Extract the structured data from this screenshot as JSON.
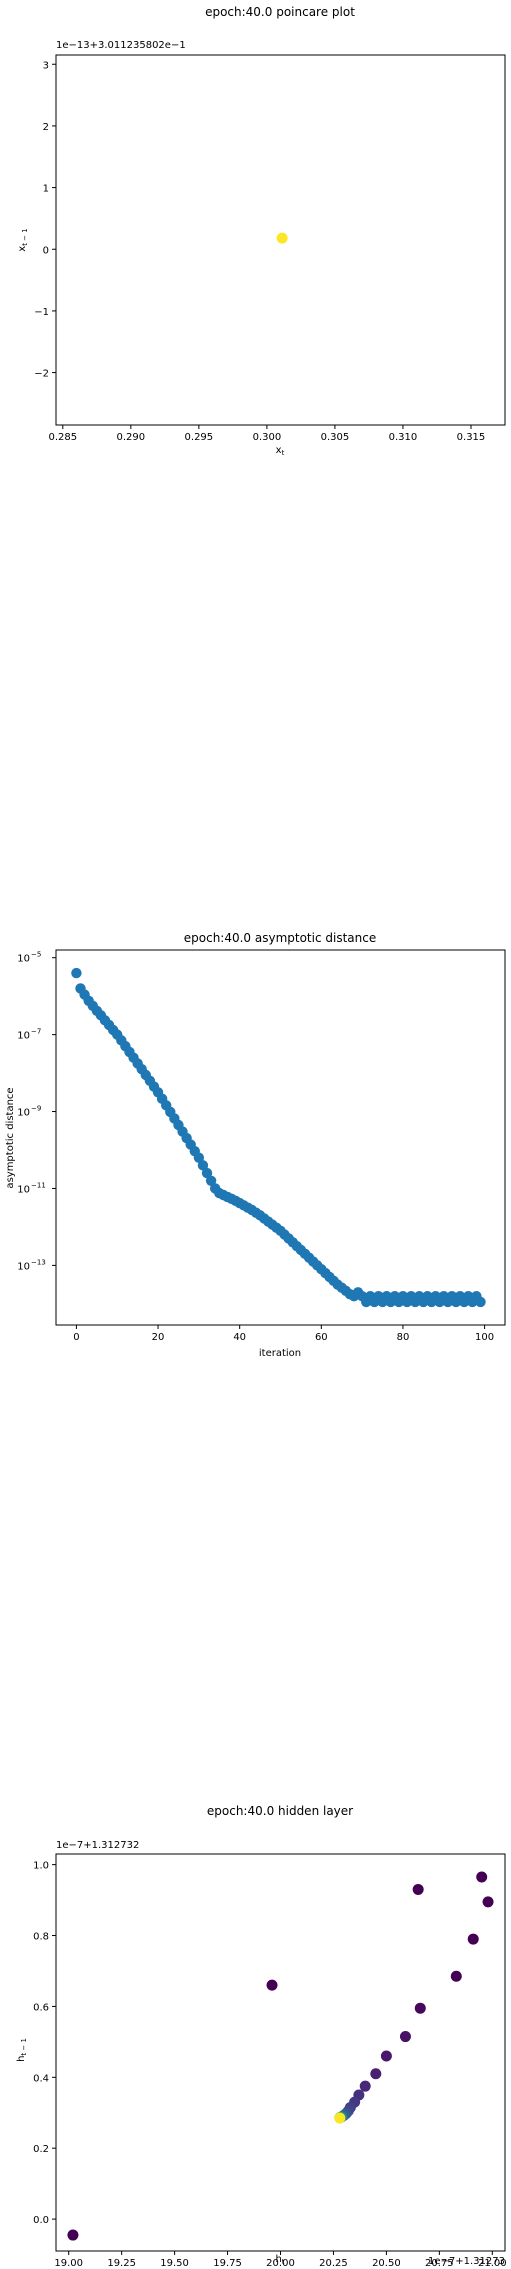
{
  "chart_data": [
    {
      "type": "scatter",
      "title": "epoch:40.0 poincare plot",
      "xlabel": "x_t",
      "ylabel": "x_{t-1}",
      "y_offset_text": "1e−13+3.011235802e−1",
      "xlim": [
        0.2845,
        0.3175
      ],
      "ylim": [
        -2.85,
        3.15
      ],
      "xticks": [
        0.285,
        0.29,
        0.295,
        0.3,
        0.305,
        0.31,
        0.315
      ],
      "xtick_labels": [
        "0.285",
        "0.290",
        "0.295",
        "0.300",
        "0.305",
        "0.310",
        "0.315"
      ],
      "yticks": [
        -2,
        -1,
        0,
        1,
        2,
        3
      ],
      "ytick_labels": [
        "−2",
        "−1",
        "0",
        "1",
        "2",
        "3"
      ],
      "points": [
        {
          "x": 0.30112,
          "y": 0.18
        }
      ],
      "point_color": "#fde725",
      "grid": false
    },
    {
      "type": "scatter",
      "title": "epoch:40.0 asymptotic distance",
      "xlabel": "iteration",
      "ylabel": "asymptotic distance",
      "y_scale": "log",
      "xlim": [
        -5,
        105
      ],
      "ylim_log10": [
        -14.55,
        -4.8
      ],
      "xticks": [
        0,
        20,
        40,
        60,
        80,
        100
      ],
      "xtick_labels": [
        "0",
        "20",
        "40",
        "60",
        "80",
        "100"
      ],
      "yticks_log10": [
        -13,
        -11,
        -9,
        -7,
        -5
      ],
      "ytick_labels": [
        "10",
        "10",
        "10",
        "10",
        "10"
      ],
      "ytick_exponents": [
        "−13",
        "−11",
        "−9",
        "−7",
        "−5"
      ],
      "x_values": [
        0,
        1,
        2,
        3,
        4,
        5,
        6,
        7,
        8,
        9,
        10,
        11,
        12,
        13,
        14,
        15,
        16,
        17,
        18,
        19,
        20,
        21,
        22,
        23,
        24,
        25,
        26,
        27,
        28,
        29,
        30,
        31,
        32,
        33,
        34,
        35,
        36,
        37,
        38,
        39,
        40,
        41,
        42,
        43,
        44,
        45,
        46,
        47,
        48,
        49,
        50,
        51,
        52,
        53,
        54,
        55,
        56,
        57,
        58,
        59,
        60,
        61,
        62,
        63,
        64,
        65,
        66,
        67,
        68,
        69,
        70,
        71,
        72,
        73,
        74,
        75,
        76,
        77,
        78,
        79,
        80,
        81,
        82,
        83,
        84,
        85,
        86,
        87,
        88,
        89,
        90,
        91,
        92,
        93,
        94,
        95,
        96,
        97,
        98,
        99
      ],
      "log10_values": [
        -5.4,
        -5.8,
        -5.96,
        -6.12,
        -6.25,
        -6.38,
        -6.5,
        -6.63,
        -6.75,
        -6.88,
        -7.0,
        -7.15,
        -7.3,
        -7.45,
        -7.6,
        -7.75,
        -7.9,
        -8.05,
        -8.2,
        -8.35,
        -8.5,
        -8.67,
        -8.84,
        -9.01,
        -9.18,
        -9.35,
        -9.52,
        -9.69,
        -9.86,
        -10.03,
        -10.2,
        -10.4,
        -10.6,
        -10.8,
        -11.0,
        -11.12,
        -11.17,
        -11.22,
        -11.27,
        -11.32,
        -11.38,
        -11.44,
        -11.5,
        -11.56,
        -11.63,
        -11.7,
        -11.78,
        -11.86,
        -11.94,
        -12.02,
        -12.1,
        -12.2,
        -12.3,
        -12.4,
        -12.5,
        -12.6,
        -12.7,
        -12.8,
        -12.9,
        -13.0,
        -13.1,
        -13.2,
        -13.3,
        -13.4,
        -13.5,
        -13.58,
        -13.66,
        -13.75,
        -13.8,
        -13.7,
        -13.8,
        -13.95,
        -13.8,
        -13.95,
        -13.8,
        -13.95,
        -13.8,
        -13.95,
        -13.8,
        -13.95,
        -13.8,
        -13.95,
        -13.8,
        -13.95,
        -13.8,
        -13.95,
        -13.8,
        -13.95,
        -13.8,
        -13.95,
        -13.8,
        -13.95,
        -13.8,
        -13.95,
        -13.8,
        -13.95,
        -13.8,
        -13.95,
        -13.8,
        -13.95
      ],
      "point_color": "#1f77b4",
      "grid": false
    },
    {
      "type": "scatter",
      "title": "epoch:40.0 hidden layer",
      "xlabel": "h_t",
      "ylabel": "h_{t-1}",
      "x_offset_text": "1e−7+1.31273",
      "y_offset_text": "1e−7+1.312732",
      "xlim": [
        18.94,
        21.06
      ],
      "ylim": [
        -0.09,
        1.03
      ],
      "xticks": [
        19.0,
        19.25,
        19.5,
        19.75,
        20.0,
        20.25,
        20.5,
        20.75,
        21.0
      ],
      "xtick_labels": [
        "19.00",
        "19.25",
        "19.50",
        "19.75",
        "20.00",
        "20.25",
        "20.50",
        "20.75",
        "21.00"
      ],
      "yticks": [
        0.0,
        0.2,
        0.4,
        0.6,
        0.8,
        1.0
      ],
      "ytick_labels": [
        "0.0",
        "0.2",
        "0.4",
        "0.6",
        "0.8",
        "1.0"
      ],
      "points": [
        {
          "x": 19.02,
          "y": -0.045,
          "color": "#440154"
        },
        {
          "x": 19.96,
          "y": 0.66,
          "color": "#440154"
        },
        {
          "x": 20.65,
          "y": 0.93,
          "color": "#440154"
        },
        {
          "x": 20.95,
          "y": 0.965,
          "color": "#440154"
        },
        {
          "x": 20.98,
          "y": 0.895,
          "color": "#440154"
        },
        {
          "x": 20.91,
          "y": 0.79,
          "color": "#440154"
        },
        {
          "x": 20.83,
          "y": 0.685,
          "color": "#440154"
        },
        {
          "x": 20.66,
          "y": 0.595,
          "color": "#46085c"
        },
        {
          "x": 20.59,
          "y": 0.515,
          "color": "#471164"
        },
        {
          "x": 20.5,
          "y": 0.46,
          "color": "#48186a"
        },
        {
          "x": 20.45,
          "y": 0.41,
          "color": "#482173"
        },
        {
          "x": 20.4,
          "y": 0.375,
          "color": "#482878"
        },
        {
          "x": 20.37,
          "y": 0.35,
          "color": "#46307e"
        },
        {
          "x": 20.35,
          "y": 0.33,
          "color": "#453781"
        },
        {
          "x": 20.33,
          "y": 0.315,
          "color": "#423f85"
        },
        {
          "x": 20.32,
          "y": 0.305,
          "color": "#3f4788"
        },
        {
          "x": 20.31,
          "y": 0.298,
          "color": "#3b528b"
        },
        {
          "x": 20.3,
          "y": 0.293,
          "color": "#33638d"
        },
        {
          "x": 20.29,
          "y": 0.289,
          "color": "#2a788e"
        },
        {
          "x": 20.285,
          "y": 0.287,
          "color": "#21918c"
        },
        {
          "x": 20.28,
          "y": 0.286,
          "color": "#35b779"
        },
        {
          "x": 20.28,
          "y": 0.285,
          "color": "#fde725"
        }
      ],
      "grid": false
    }
  ]
}
